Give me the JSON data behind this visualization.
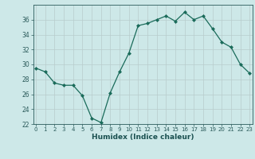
{
  "x": [
    0,
    1,
    2,
    3,
    4,
    5,
    6,
    7,
    8,
    9,
    10,
    11,
    12,
    13,
    14,
    15,
    16,
    17,
    18,
    19,
    20,
    21,
    22,
    23
  ],
  "y": [
    29.5,
    29.0,
    27.5,
    27.2,
    27.2,
    25.8,
    22.8,
    22.2,
    26.2,
    29.0,
    31.5,
    35.2,
    35.5,
    36.0,
    36.5,
    35.8,
    37.0,
    36.0,
    36.5,
    34.8,
    33.0,
    32.3,
    30.0,
    28.8
  ],
  "xlabel": "Humidex (Indice chaleur)",
  "ylim": [
    22,
    38
  ],
  "yticks": [
    22,
    24,
    26,
    28,
    30,
    32,
    34,
    36
  ],
  "xticks": [
    0,
    1,
    2,
    3,
    4,
    5,
    6,
    7,
    8,
    9,
    10,
    11,
    12,
    13,
    14,
    15,
    16,
    17,
    18,
    19,
    20,
    21,
    22,
    23
  ],
  "line_color": "#1a6b5a",
  "marker": "D",
  "marker_size": 2.0,
  "bg_color": "#cde8e8",
  "grid_color": "#b8cccc",
  "tick_color": "#2a5a5a",
  "label_color": "#1a5050"
}
